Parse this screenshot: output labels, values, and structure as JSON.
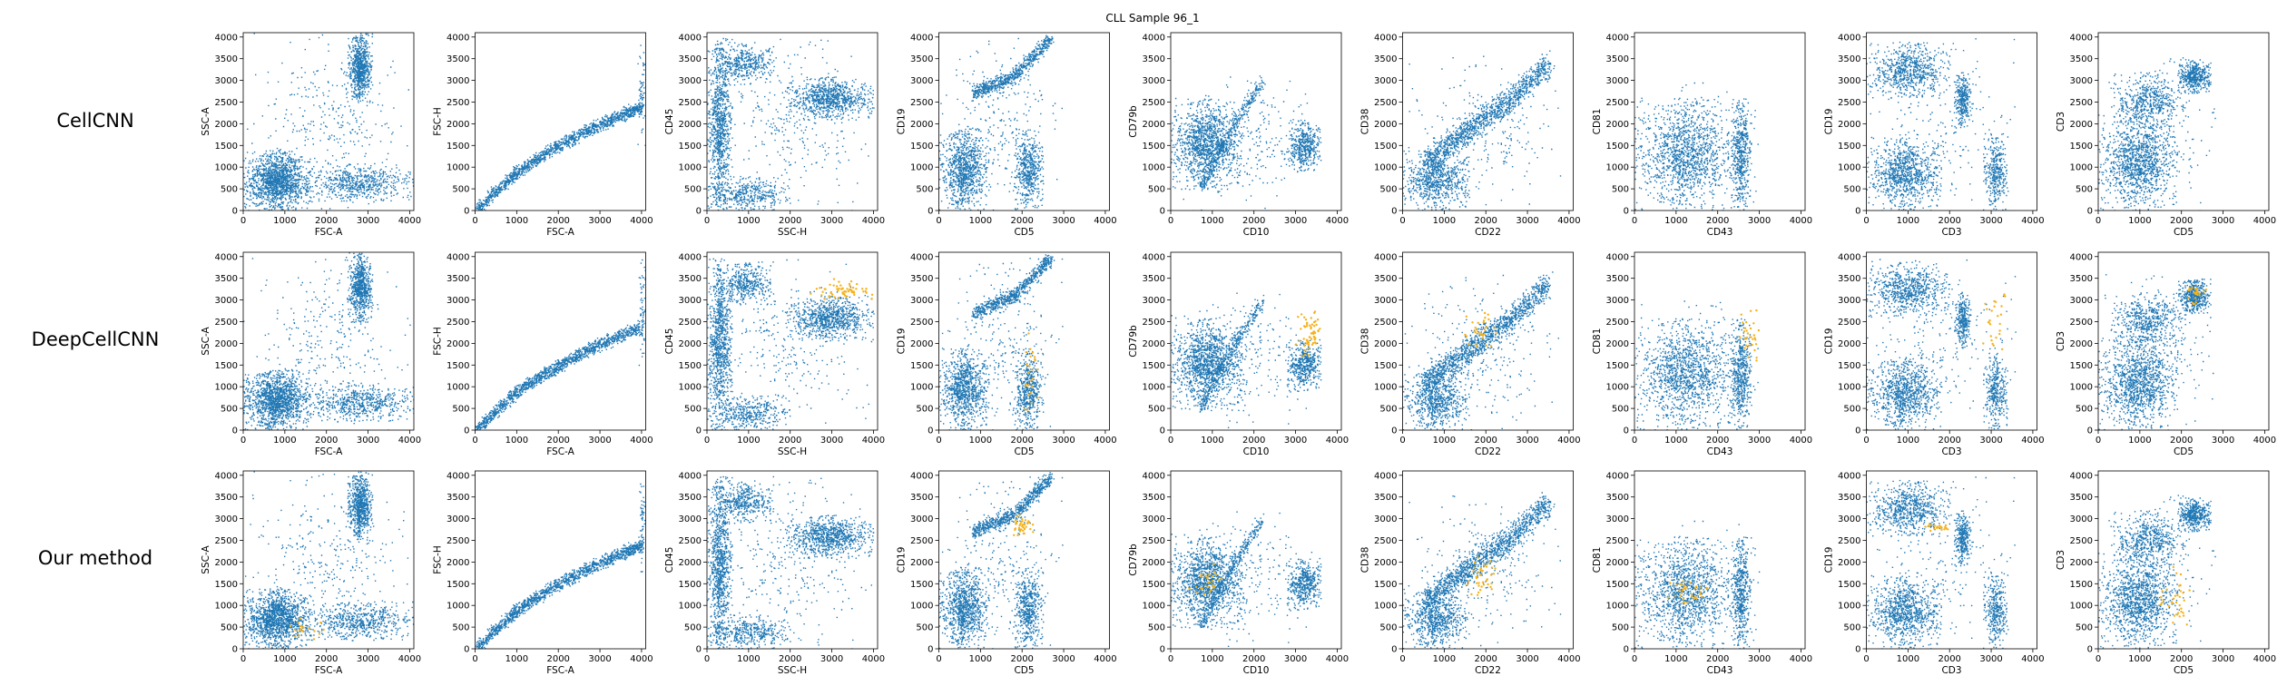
{
  "figure": {
    "title": "CLL Sample 96_1",
    "row_labels": [
      "CellCNN",
      "DeepCellCNN",
      "Our method"
    ],
    "colors": {
      "population": "#1f77b4",
      "selected": "#f5b21a"
    }
  },
  "chart_data": {
    "type": "scatter",
    "title": "CLL Sample 96_1",
    "grid": false,
    "rows": [
      "CellCNN",
      "DeepCellCNN",
      "Our method"
    ],
    "series": [
      {
        "name": "",
        "color": "#1f77b4"
      },
      {
        "name": "",
        "color": "#f5b21a"
      }
    ],
    "panels": [
      {
        "xlabel": "FSC-A",
        "ylabel": "SSC-A",
        "xlim": [
          0,
          4100
        ],
        "ylim": [
          0,
          4100
        ],
        "xticks": [
          0,
          1000,
          2000,
          3000,
          4000
        ],
        "yticks": [
          0,
          500,
          1000,
          1500,
          2000,
          2500,
          3000,
          3500,
          4000
        ]
      },
      {
        "xlabel": "FSC-A",
        "ylabel": "FSC-H",
        "xlim": [
          0,
          4100
        ],
        "ylim": [
          0,
          4100
        ],
        "xticks": [
          0,
          1000,
          2000,
          3000,
          4000
        ],
        "yticks": [
          0,
          500,
          1000,
          1500,
          2000,
          2500,
          3000,
          3500,
          4000
        ]
      },
      {
        "xlabel": "SSC-H",
        "ylabel": "CD45",
        "xlim": [
          0,
          4100
        ],
        "ylim": [
          0,
          4100
        ],
        "xticks": [
          0,
          1000,
          2000,
          3000,
          4000
        ],
        "yticks": [
          0,
          500,
          1000,
          1500,
          2000,
          2500,
          3000,
          3500,
          4000
        ]
      },
      {
        "xlabel": "CD5",
        "ylabel": "CD19",
        "xlim": [
          0,
          4100
        ],
        "ylim": [
          0,
          4100
        ],
        "xticks": [
          0,
          1000,
          2000,
          3000,
          4000
        ],
        "yticks": [
          0,
          500,
          1000,
          1500,
          2000,
          2500,
          3000,
          3500,
          4000
        ]
      },
      {
        "xlabel": "CD10",
        "ylabel": "CD79b",
        "xlim": [
          0,
          4100
        ],
        "ylim": [
          0,
          4100
        ],
        "xticks": [
          0,
          1000,
          2000,
          3000,
          4000
        ],
        "yticks": [
          0,
          500,
          1000,
          1500,
          2000,
          2500,
          3000,
          3500,
          4000
        ]
      },
      {
        "xlabel": "CD22",
        "ylabel": "CD38",
        "xlim": [
          0,
          4100
        ],
        "ylim": [
          0,
          4100
        ],
        "xticks": [
          0,
          1000,
          2000,
          3000,
          4000
        ],
        "yticks": [
          0,
          500,
          1000,
          1500,
          2000,
          2500,
          3000,
          3500,
          4000
        ]
      },
      {
        "xlabel": "CD43",
        "ylabel": "CD81",
        "xlim": [
          0,
          4100
        ],
        "ylim": [
          0,
          4100
        ],
        "xticks": [
          0,
          1000,
          2000,
          3000,
          4000
        ],
        "yticks": [
          0,
          500,
          1000,
          1500,
          2000,
          2500,
          3000,
          3500,
          4000
        ]
      },
      {
        "xlabel": "CD3",
        "ylabel": "CD19",
        "xlim": [
          0,
          4100
        ],
        "ylim": [
          0,
          4100
        ],
        "xticks": [
          0,
          1000,
          2000,
          3000,
          4000
        ],
        "yticks": [
          0,
          500,
          1000,
          1500,
          2000,
          2500,
          3000,
          3500,
          4000
        ]
      },
      {
        "xlabel": "CD5",
        "ylabel": "CD3",
        "xlim": [
          0,
          4100
        ],
        "ylim": [
          0,
          4100
        ],
        "xticks": [
          0,
          1000,
          2000,
          3000,
          4000
        ],
        "yticks": [
          0,
          500,
          1000,
          1500,
          2000,
          2500,
          3000,
          3500,
          4000
        ]
      }
    ],
    "population_clusters": [
      [
        {
          "x": [
            0,
            1600
          ],
          "y": [
            0,
            1400
          ],
          "n": 1400
        },
        {
          "x": [
            2500,
            3100
          ],
          "y": [
            2500,
            4100
          ],
          "n": 700
        },
        {
          "x": [
            1500,
            4100
          ],
          "y": [
            200,
            1100
          ],
          "n": 600
        },
        {
          "x": [
            0,
            4000
          ],
          "y": [
            0,
            4100
          ],
          "n": 300
        }
      ],
      [
        {
          "line": [
            [
              0,
              0
            ],
            [
              1000,
              900
            ],
            [
              2000,
              1500
            ],
            [
              3000,
              2000
            ],
            [
              4000,
              2400
            ]
          ],
          "spread": 220,
          "n": 1400
        },
        {
          "x": [
            3900,
            4100
          ],
          "y": [
            1500,
            4100
          ],
          "n": 60
        }
      ],
      [
        {
          "x": [
            0,
            600
          ],
          "y": [
            0,
            4000
          ],
          "n": 900
        },
        {
          "x": [
            1900,
            4000
          ],
          "y": [
            2100,
            3100
          ],
          "n": 800
        },
        {
          "x": [
            200,
            1600
          ],
          "y": [
            2900,
            3900
          ],
          "n": 400
        },
        {
          "x": [
            0,
            2000
          ],
          "y": [
            0,
            800
          ],
          "n": 400
        },
        {
          "x": [
            0,
            4000
          ],
          "y": [
            0,
            4000
          ],
          "n": 300
        }
      ],
      [
        {
          "x": [
            0,
            1200
          ],
          "y": [
            0,
            1900
          ],
          "n": 900
        },
        {
          "x": [
            1800,
            2500
          ],
          "y": [
            0,
            1900
          ],
          "n": 500
        },
        {
          "line": [
            [
              800,
              2700
            ],
            [
              1800,
              3100
            ],
            [
              2700,
              4000
            ]
          ],
          "spread": 250,
          "n": 700
        },
        {
          "x": [
            0,
            3000
          ],
          "y": [
            0,
            4000
          ],
          "n": 250
        }
      ],
      [
        {
          "x": [
            0,
            1700
          ],
          "y": [
            500,
            2600
          ],
          "n": 1200
        },
        {
          "x": [
            2800,
            3600
          ],
          "y": [
            900,
            2100
          ],
          "n": 450
        },
        {
          "line": [
            [
              700,
              500
            ],
            [
              1400,
              1800
            ],
            [
              2200,
              3000
            ]
          ],
          "spread": 250,
          "n": 350
        },
        {
          "x": [
            0,
            3600
          ],
          "y": [
            0,
            3200
          ],
          "n": 250
        }
      ],
      [
        {
          "x": [
            0,
            1600
          ],
          "y": [
            0,
            1400
          ],
          "n": 700
        },
        {
          "line": [
            [
              500,
              1100
            ],
            [
              1500,
              1800
            ],
            [
              2500,
              2500
            ],
            [
              3500,
              3400
            ]
          ],
          "spread": 450,
          "n": 1200
        },
        {
          "x": [
            0,
            3800
          ],
          "y": [
            0,
            3600
          ],
          "n": 250
        }
      ],
      [
        {
          "x": [
            0,
            2400
          ],
          "y": [
            0,
            2600
          ],
          "n": 1100
        },
        {
          "x": [
            2300,
            2800
          ],
          "y": [
            0,
            2600
          ],
          "n": 500
        },
        {
          "x": [
            0,
            3000
          ],
          "y": [
            0,
            3000
          ],
          "n": 250
        }
      ],
      [
        {
          "x": [
            0,
            1800
          ],
          "y": [
            0,
            1700
          ],
          "n": 900
        },
        {
          "x": [
            0,
            2000
          ],
          "y": [
            2600,
            3900
          ],
          "n": 700
        },
        {
          "x": [
            2100,
            2500
          ],
          "y": [
            1900,
            3200
          ],
          "n": 300
        },
        {
          "x": [
            2800,
            3400
          ],
          "y": [
            0,
            1800
          ],
          "n": 350
        },
        {
          "x": [
            0,
            3600
          ],
          "y": [
            0,
            4000
          ],
          "n": 200
        }
      ],
      [
        {
          "x": [
            0,
            1900
          ],
          "y": [
            0,
            2200
          ],
          "n": 1100
        },
        {
          "x": [
            1900,
            2700
          ],
          "y": [
            2700,
            3500
          ],
          "n": 450
        },
        {
          "x": [
            300,
            2100
          ],
          "y": [
            1900,
            3200
          ],
          "n": 500
        },
        {
          "x": [
            0,
            2800
          ],
          "y": [
            0,
            3600
          ],
          "n": 200
        }
      ]
    ],
    "selected_regions": {
      "CellCNN": [],
      "DeepCellCNN": [
        {
          "panel": 2,
          "x": [
            2400,
            4000
          ],
          "y": [
            2900,
            3500
          ],
          "n": 60
        },
        {
          "panel": 3,
          "x": [
            2000,
            2400
          ],
          "y": [
            400,
            2300
          ],
          "n": 25
        },
        {
          "panel": 4,
          "x": [
            3000,
            3700
          ],
          "y": [
            1600,
            2900
          ],
          "n": 60
        },
        {
          "panel": 5,
          "x": [
            1500,
            2300
          ],
          "y": [
            1900,
            2800
          ],
          "n": 30
        },
        {
          "panel": 6,
          "x": [
            2500,
            3000
          ],
          "y": [
            1600,
            2900
          ],
          "n": 30
        },
        {
          "panel": 7,
          "x": [
            2800,
            3400
          ],
          "y": [
            1500,
            3500
          ],
          "n": 25
        },
        {
          "panel": 8,
          "x": [
            2000,
            2600
          ],
          "y": [
            2900,
            3400
          ],
          "n": 25
        }
      ],
      "Our method": [
        {
          "panel": 0,
          "x": [
            800,
            2000
          ],
          "y": [
            200,
            700
          ],
          "n": 20
        },
        {
          "panel": 3,
          "x": [
            1700,
            2300
          ],
          "y": [
            2600,
            3100
          ],
          "n": 40
        },
        {
          "panel": 4,
          "x": [
            300,
            1400
          ],
          "y": [
            1000,
            2100
          ],
          "n": 30
        },
        {
          "panel": 5,
          "x": [
            1500,
            2300
          ],
          "y": [
            1200,
            2200
          ],
          "n": 40
        },
        {
          "panel": 6,
          "x": [
            800,
            1800
          ],
          "y": [
            1000,
            1600
          ],
          "n": 35
        },
        {
          "panel": 7,
          "x": [
            1400,
            2100
          ],
          "y": [
            2700,
            2900
          ],
          "n": 20
        },
        {
          "panel": 8,
          "x": [
            1500,
            2200
          ],
          "y": [
            300,
            1900
          ],
          "n": 35
        }
      ]
    }
  }
}
